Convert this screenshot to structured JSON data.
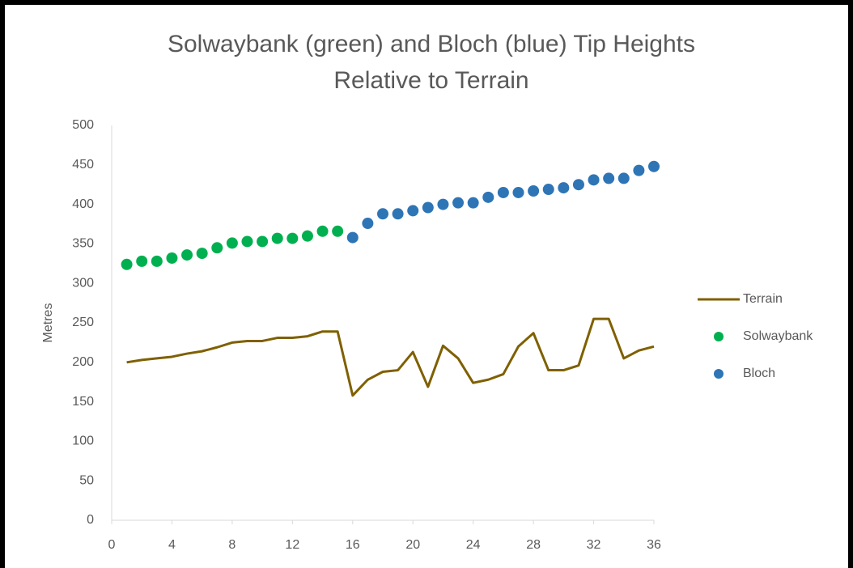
{
  "chart_data": {
    "type": "line-scatter",
    "title": [
      "Solwaybank (green) and Bloch (blue) Tip Heights",
      "Relative to Terrain"
    ],
    "ylabel": "Metres",
    "xlim": [
      0,
      36
    ],
    "xticks": [
      0,
      4,
      8,
      12,
      16,
      20,
      24,
      28,
      32,
      36
    ],
    "ylim": [
      0,
      500
    ],
    "yticks": [
      0,
      50,
      100,
      150,
      200,
      250,
      300,
      350,
      400,
      450,
      500
    ],
    "grid": false,
    "legend": "right",
    "series": [
      {
        "name": "Terrain",
        "kind": "line",
        "color": "#7f6000",
        "x": [
          1,
          2,
          3,
          4,
          5,
          6,
          7,
          8,
          9,
          10,
          11,
          12,
          13,
          14,
          15,
          16,
          17,
          18,
          19,
          20,
          21,
          22,
          23,
          24,
          25,
          26,
          27,
          28,
          29,
          30,
          31,
          32,
          33,
          34,
          35,
          36
        ],
        "values": [
          200,
          203,
          205,
          207,
          211,
          214,
          219,
          225,
          227,
          227,
          231,
          231,
          233,
          239,
          239,
          158,
          178,
          188,
          190,
          213,
          169,
          221,
          205,
          174,
          178,
          185,
          220,
          237,
          190,
          190,
          196,
          255,
          255,
          205,
          215,
          220
        ]
      },
      {
        "name": "Solwaybank",
        "kind": "scatter",
        "color": "#00b050",
        "x": [
          1,
          2,
          3,
          4,
          5,
          6,
          7,
          8,
          9,
          10,
          11,
          12,
          13,
          14,
          15
        ],
        "values": [
          324,
          328,
          328,
          332,
          336,
          338,
          345,
          351,
          353,
          353,
          357,
          357,
          360,
          366,
          366
        ]
      },
      {
        "name": "Bloch",
        "kind": "scatter",
        "color": "#2e75b6",
        "x": [
          16,
          17,
          18,
          19,
          20,
          21,
          22,
          23,
          24,
          25,
          26,
          27,
          28,
          29,
          30,
          31,
          32,
          33,
          34,
          35,
          36
        ],
        "values": [
          358,
          376,
          388,
          388,
          392,
          396,
          400,
          402,
          402,
          409,
          415,
          415,
          417,
          419,
          421,
          425,
          431,
          433,
          433,
          443,
          448
        ]
      }
    ]
  }
}
